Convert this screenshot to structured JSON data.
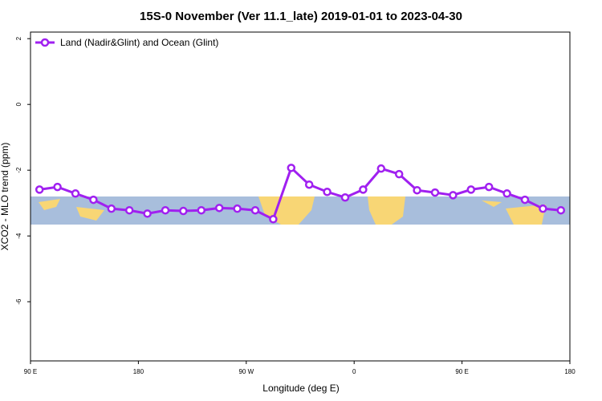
{
  "chart_data": {
    "type": "line",
    "title": "15S-0 November (Ver 11.1_late)   2019-01-01 to 2023-04-30",
    "x_label": "Longitude (deg E)",
    "y_label": "XCO2 - MLO trend (ppm)",
    "x": [
      97.5,
      112.5,
      127.5,
      142.5,
      157.5,
      172.5,
      187.5,
      202.5,
      217.5,
      232.5,
      247.5,
      262.5,
      277.5,
      292.5,
      307.5,
      322.5,
      337.5,
      352.5,
      367.5,
      382.5,
      397.5,
      412.5,
      427.5,
      442.5,
      457.5,
      472.5,
      487.5,
      502.5,
      517.5,
      532.5
    ],
    "series": [
      {
        "name": "Land (Nadir&Glint) and Ocean (Glint)",
        "color": "#a020f0",
        "values": [
          -2.59,
          -2.51,
          -2.71,
          -2.9,
          -3.17,
          -3.22,
          -3.32,
          -3.22,
          -3.24,
          -3.22,
          -3.15,
          -3.17,
          -3.22,
          -3.49,
          -1.93,
          -2.44,
          -2.66,
          -2.83,
          -2.59,
          -1.95,
          -2.12,
          -2.61,
          -2.68,
          -2.76,
          -2.59,
          -2.51,
          -2.71,
          -2.9,
          -3.17,
          -3.22
        ]
      }
    ],
    "xlim": [
      90,
      540
    ],
    "xticks": [
      {
        "value": 90,
        "label": "90 E"
      },
      {
        "value": 180,
        "label": "180"
      },
      {
        "value": 270,
        "label": "90 W"
      },
      {
        "value": 360,
        "label": "0"
      },
      {
        "value": 450,
        "label": "90 E"
      },
      {
        "value": 540,
        "label": "180"
      }
    ],
    "ylim": [
      -7.8,
      2.2
    ],
    "yticks": [
      2,
      0,
      -2,
      -4,
      -6
    ],
    "legend": "top-left"
  }
}
